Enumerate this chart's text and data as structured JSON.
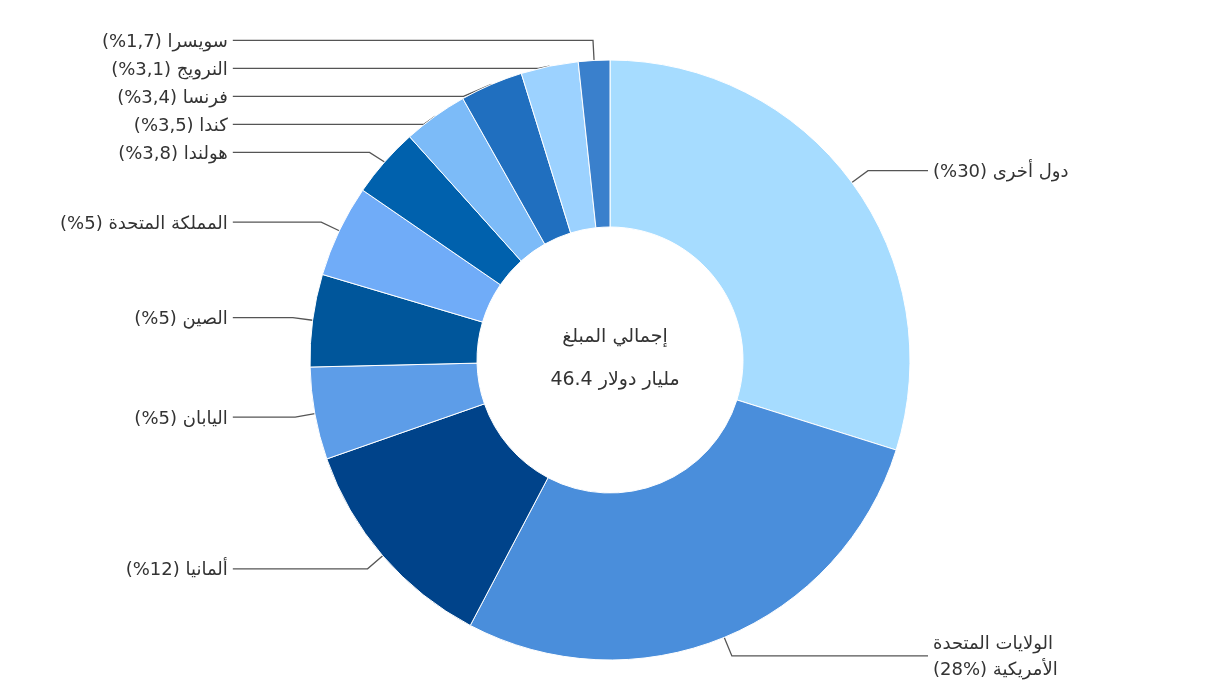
{
  "chart_data": {
    "type": "donut",
    "title": "إجمالي المبلغ",
    "subtitle": "مليار دولار 46.4",
    "categories": [
      "دول أخرى",
      "الولايات المتحدة\nالأمريكية",
      "ألمانيا",
      "اليابان",
      "الصين",
      "المملكة المتحدة",
      "هولندا",
      "كندا",
      "فرنسا",
      "النرويج",
      "سويسرا"
    ],
    "values": [
      30,
      28,
      12,
      5,
      5,
      5,
      3.8,
      3.5,
      3.4,
      3.1,
      1.7
    ],
    "value_labels": [
      "(%30)",
      "(%28)",
      "(%12)",
      "(%5)",
      "(%5)",
      "(%5)",
      "(%3,8)",
      "(%3,5)",
      "(%3,4)",
      "(%3,1)",
      "(%1,7)"
    ],
    "colors": [
      "#a6dcff",
      "#4a8edb",
      "#00438a",
      "#5d9de8",
      "#00569b",
      "#70acf8",
      "#0061ad",
      "#7cbbf8",
      "#206fbf",
      "#9cd2ff",
      "#3a80cc"
    ],
    "legend": false
  }
}
